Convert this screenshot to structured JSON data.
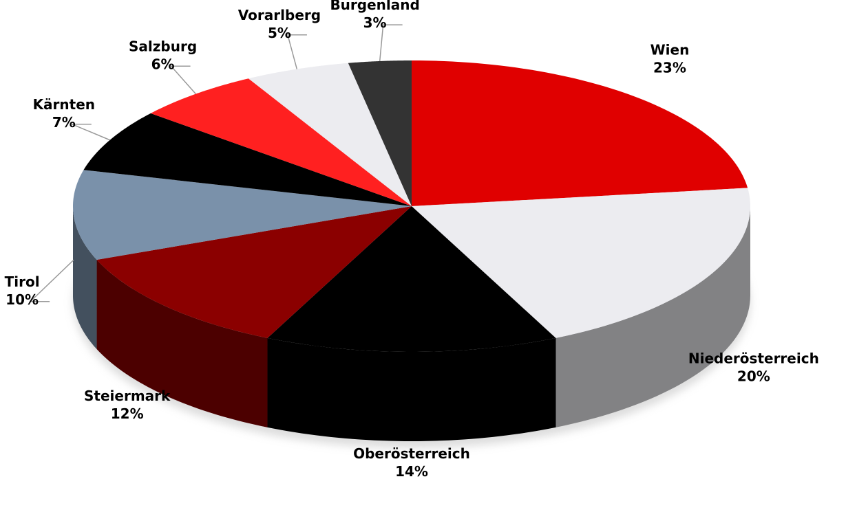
{
  "chart_data": {
    "type": "pie3d",
    "categories": [
      "Wien",
      "Niederösterreich",
      "Oberösterreich",
      "Steiermark",
      "Tirol",
      "Kärnten",
      "Salzburg",
      "Vorarlberg",
      "Burgenland"
    ],
    "values": [
      23,
      20,
      14,
      12,
      10,
      7,
      6,
      5,
      3
    ],
    "value_labels": [
      "23%",
      "20%",
      "14%",
      "12%",
      "10%",
      "7%",
      "6%",
      "5%",
      "3%"
    ],
    "colors": [
      "#e00000",
      "#ececf0",
      "#000000",
      "#8b0000",
      "#7a91aa",
      "#000000",
      "#ff2020",
      "#ececf0",
      "#333333"
    ]
  }
}
